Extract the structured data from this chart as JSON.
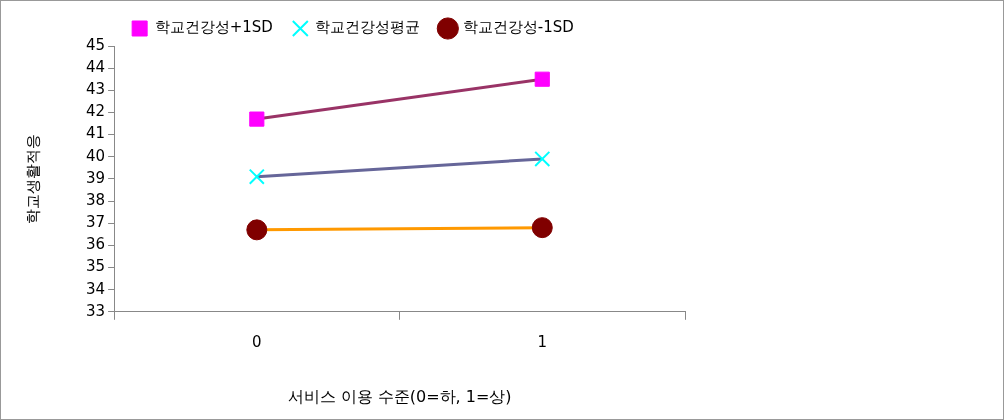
{
  "chart_data": {
    "type": "line",
    "xlabel": "서비스 이용 수준(0=하, 1=상)",
    "ylabel": "학교생활적응",
    "categories": [
      "0",
      "1"
    ],
    "ylim": [
      33,
      45
    ],
    "yticks": [
      33,
      34,
      35,
      36,
      37,
      38,
      39,
      40,
      41,
      42,
      43,
      44,
      45
    ],
    "grid": false,
    "legend": "top",
    "line_style": "solid",
    "series": [
      {
        "name": "학교건강성+1SD",
        "color": "#993366",
        "colors": [
          "#ff00ff",
          "#ff00ff"
        ],
        "marker": "square",
        "values": [
          41.7,
          43.5
        ]
      },
      {
        "name": "학교건강성평균",
        "color": "#666699",
        "colors": [
          "#00ffff",
          "#00ffff"
        ],
        "marker": "cross",
        "values": [
          39.1,
          39.9
        ]
      },
      {
        "name": "학교건강성-1SD",
        "color": "#ff9900",
        "colors": [
          "#800000",
          "#800000"
        ],
        "marker": "circle",
        "values": [
          36.7,
          36.8
        ]
      }
    ]
  }
}
